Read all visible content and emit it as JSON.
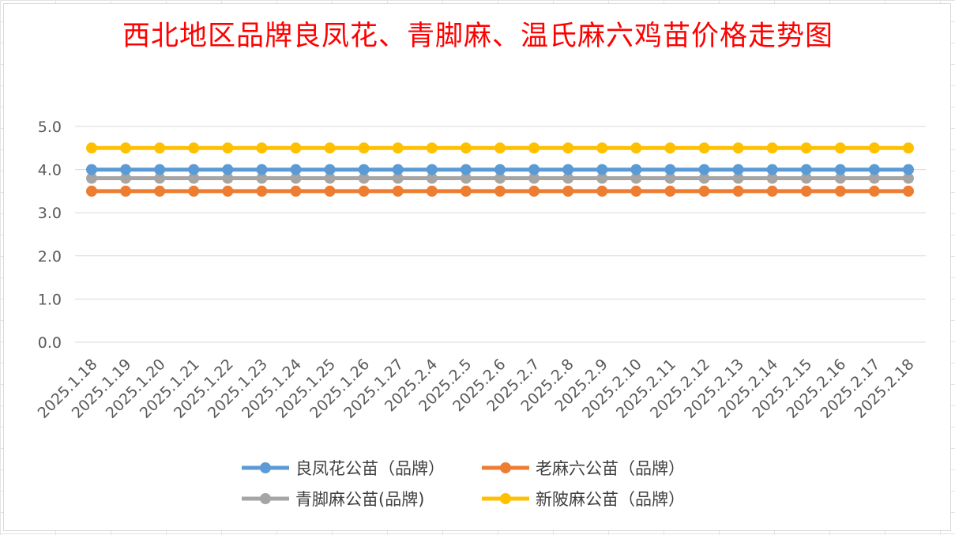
{
  "chart_data": {
    "type": "line",
    "title": "西北地区品牌良凤花、青脚麻、温氏麻六鸡苗价格走势图",
    "xlabel": "",
    "ylabel": "",
    "ylim": [
      0,
      5
    ],
    "yticks": [
      "0.0",
      "1.0",
      "2.0",
      "3.0",
      "4.0",
      "5.0"
    ],
    "grid": true,
    "legend_position": "bottom",
    "categories": [
      "2025.1.18",
      "2025.1.19",
      "2025.1.20",
      "2025.1.21",
      "2025.1.22",
      "2025.1.23",
      "2025.1.24",
      "2025.1.25",
      "2025.1.26",
      "2025.1.27",
      "2025.2.4",
      "2025.2.5",
      "2025.2.6",
      "2025.2.7",
      "2025.2.8",
      "2025.2.9",
      "2025.2.10",
      "2025.2.11",
      "2025.2.12",
      "2025.2.13",
      "2025.2.14",
      "2025.2.15",
      "2025.2.16",
      "2025.2.17",
      "2025.2.18"
    ],
    "series": [
      {
        "name": "良凤花公苗（品牌）",
        "color": "#5b9bd5",
        "values": [
          4.0,
          4.0,
          4.0,
          4.0,
          4.0,
          4.0,
          4.0,
          4.0,
          4.0,
          4.0,
          4.0,
          4.0,
          4.0,
          4.0,
          4.0,
          4.0,
          4.0,
          4.0,
          4.0,
          4.0,
          4.0,
          4.0,
          4.0,
          4.0,
          4.0
        ]
      },
      {
        "name": "老麻六公苗（品牌）",
        "color": "#ed7d31",
        "values": [
          3.5,
          3.5,
          3.5,
          3.5,
          3.5,
          3.5,
          3.5,
          3.5,
          3.5,
          3.5,
          3.5,
          3.5,
          3.5,
          3.5,
          3.5,
          3.5,
          3.5,
          3.5,
          3.5,
          3.5,
          3.5,
          3.5,
          3.5,
          3.5,
          3.5
        ]
      },
      {
        "name": "青脚麻公苗(品牌)",
        "color": "#a5a5a5",
        "values": [
          3.8,
          3.8,
          3.8,
          3.8,
          3.8,
          3.8,
          3.8,
          3.8,
          3.8,
          3.8,
          3.8,
          3.8,
          3.8,
          3.8,
          3.8,
          3.8,
          3.8,
          3.8,
          3.8,
          3.8,
          3.8,
          3.8,
          3.8,
          3.8,
          3.8
        ]
      },
      {
        "name": "新陂麻公苗（品牌）",
        "color": "#ffc000",
        "values": [
          4.5,
          4.5,
          4.5,
          4.5,
          4.5,
          4.5,
          4.5,
          4.5,
          4.5,
          4.5,
          4.5,
          4.5,
          4.5,
          4.5,
          4.5,
          4.5,
          4.5,
          4.5,
          4.5,
          4.5,
          4.5,
          4.5,
          4.5,
          4.5,
          4.5
        ]
      }
    ]
  }
}
